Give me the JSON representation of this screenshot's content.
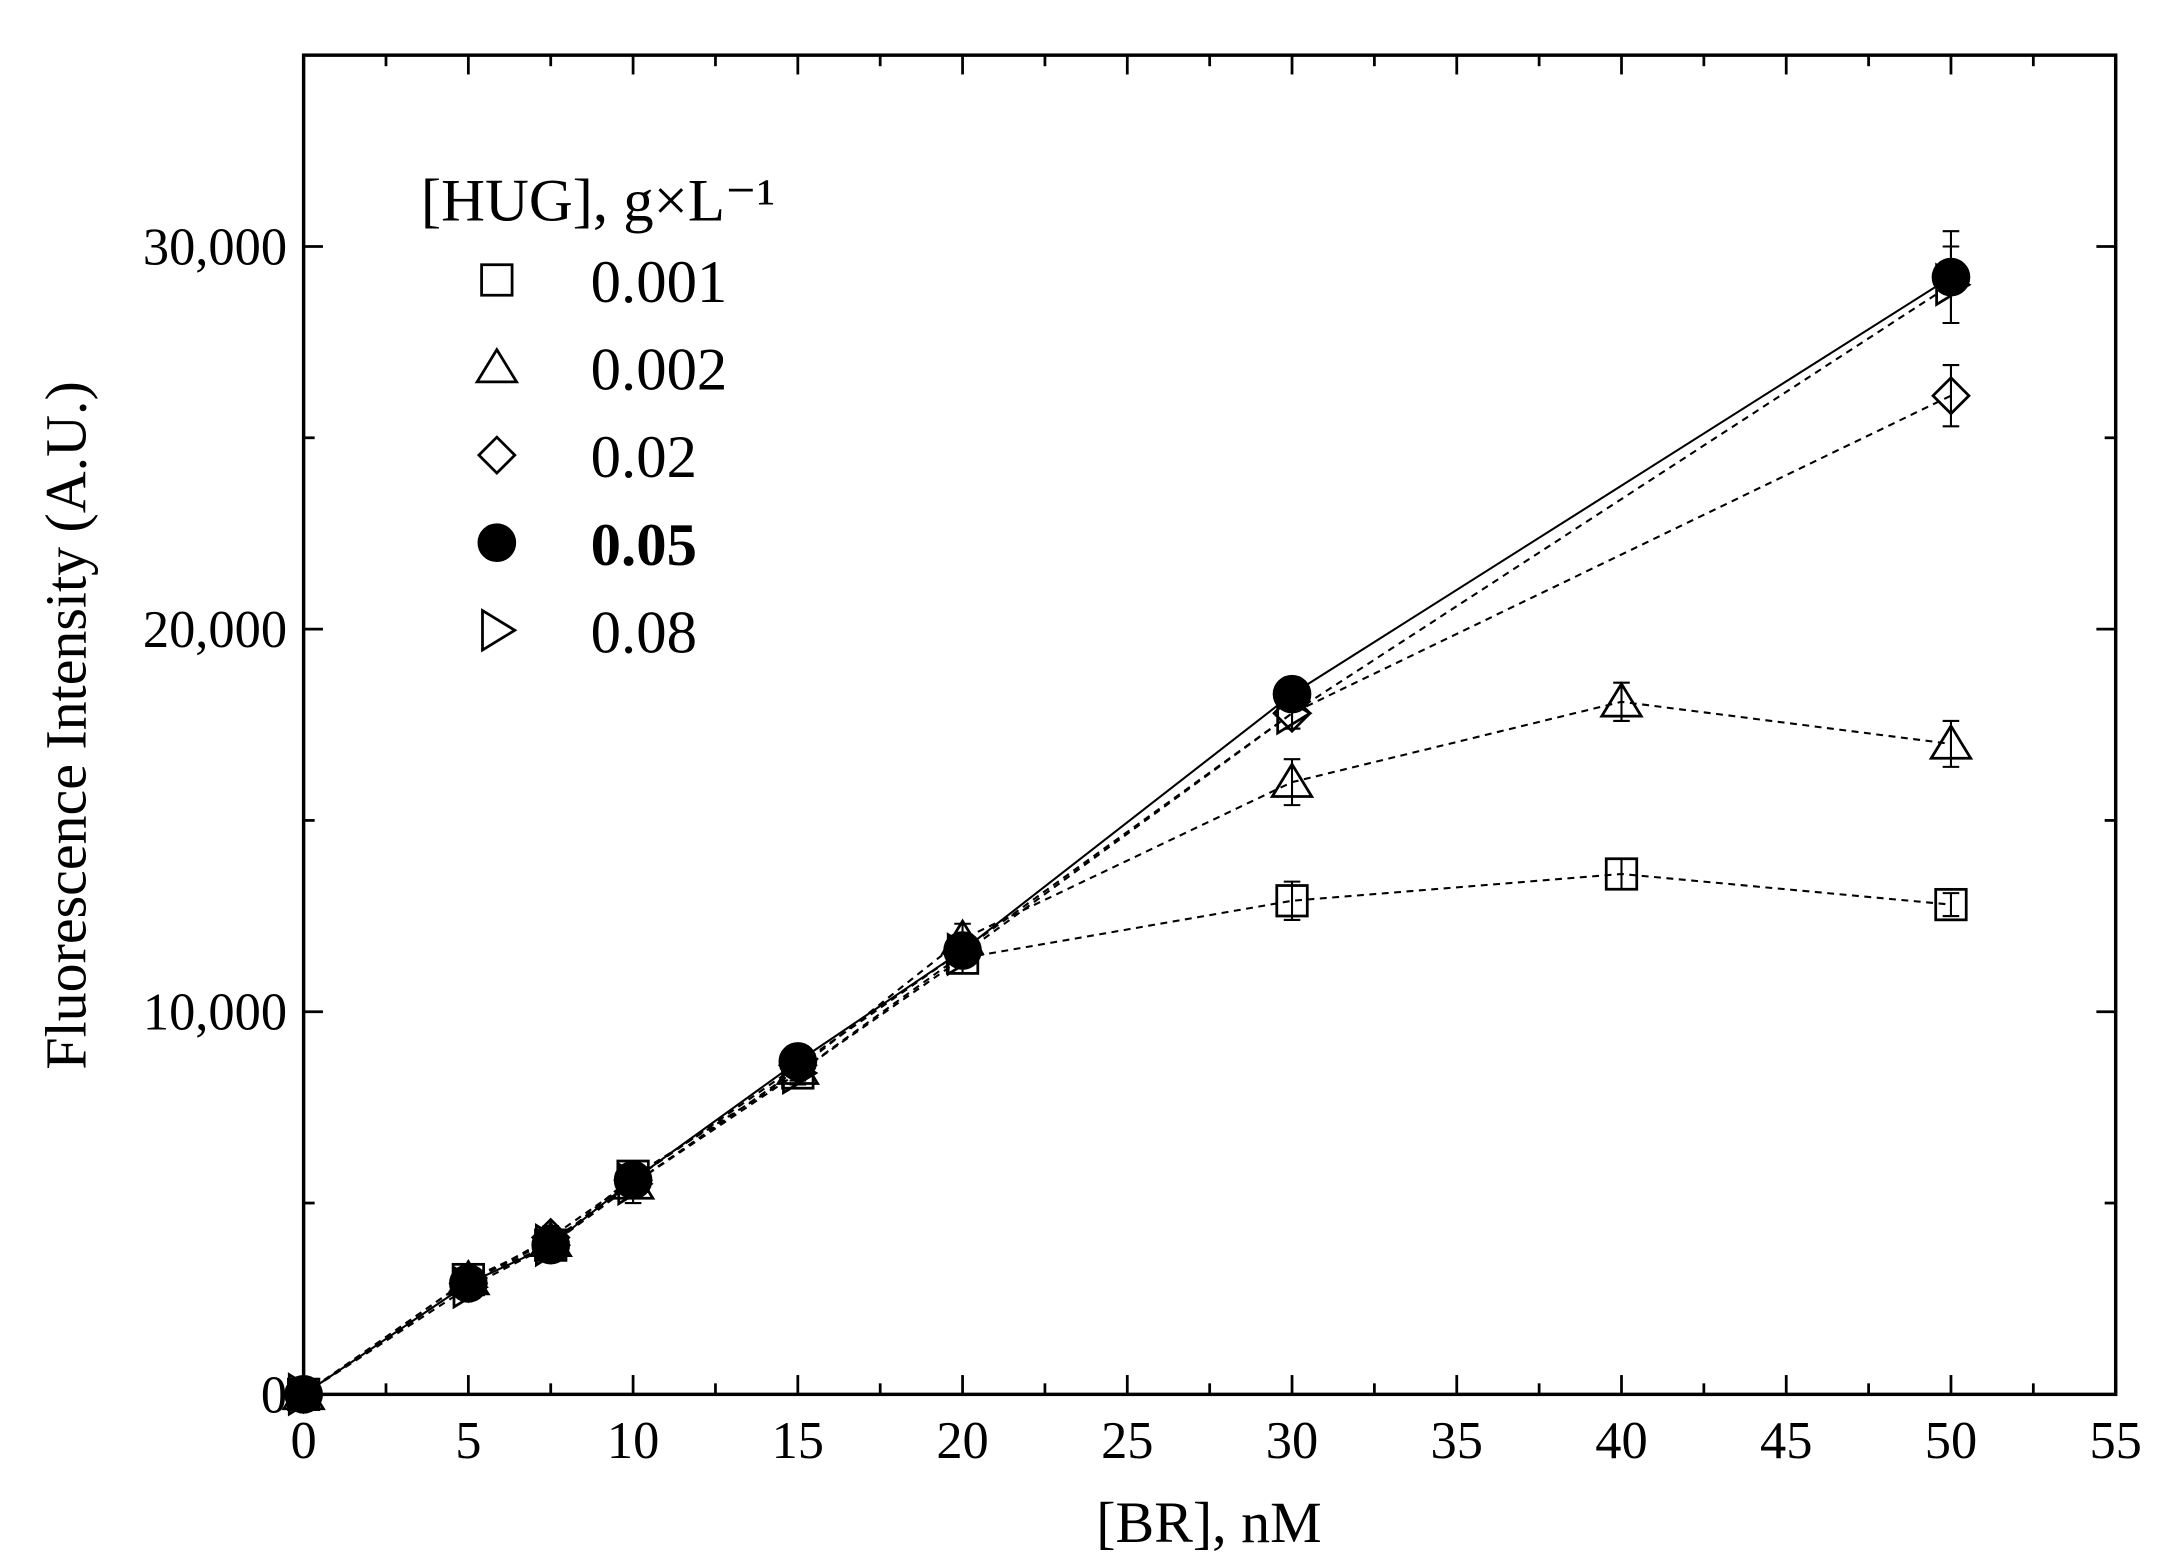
{
  "chart_data": {
    "type": "scatter",
    "x_label": "[BR], nM",
    "y_label": "Fluorescence Intensity (A.U.)",
    "legend_title": "[HUG], g×L⁻¹",
    "legend_position": "upper left",
    "xlim": [
      0,
      55
    ],
    "xticks": [
      0,
      5,
      10,
      15,
      20,
      25,
      30,
      35,
      40,
      45,
      50,
      55
    ],
    "xminorticks": [
      2.5,
      7.5,
      12.5,
      17.5,
      22.5,
      27.5,
      32.5,
      37.5,
      42.5,
      47.5,
      52.5
    ],
    "ylim": [
      0,
      35000
    ],
    "yticks": [
      0,
      {
        "value": 10000,
        "label": "10,000"
      },
      {
        "value": 20000,
        "label": "20,000"
      },
      {
        "value": 30000,
        "label": "30,000"
      }
    ],
    "yminorticks": [
      5000,
      15000,
      25000
    ],
    "series": [
      {
        "name": "0.001",
        "marker": "square",
        "filled": false,
        "line": "dashed",
        "color": "#000000",
        "x": [
          0,
          5,
          7.5,
          10,
          15,
          20,
          30,
          40,
          50
        ],
        "values": [
          0,
          3000,
          3900,
          5700,
          8400,
          11400,
          12900,
          13600,
          12800
        ],
        "errors": [
          100,
          300,
          300,
          300,
          300,
          400,
          500,
          400,
          300
        ]
      },
      {
        "name": "0.002",
        "marker": "triangle",
        "filled": false,
        "line": "dashed",
        "color": "#000000",
        "x": [
          0,
          5,
          7.5,
          10,
          15,
          20,
          30,
          40,
          50
        ],
        "values": [
          0,
          3000,
          4000,
          5500,
          8500,
          11900,
          16000,
          18100,
          17000
        ],
        "errors": [
          100,
          400,
          300,
          500,
          300,
          400,
          600,
          500,
          600
        ]
      },
      {
        "name": "0.02",
        "marker": "diamond",
        "filled": false,
        "line": "dashed",
        "color": "#000000",
        "x": [
          0,
          5,
          7.5,
          10,
          15,
          20,
          30,
          50
        ],
        "values": [
          0,
          2900,
          4100,
          5600,
          8600,
          11600,
          17800,
          26100
        ],
        "errors": [
          100,
          300,
          300,
          300,
          300,
          300,
          400,
          800
        ]
      },
      {
        "name": "0.05",
        "marker": "circle",
        "filled": true,
        "bold": true,
        "line": "solid",
        "color": "#000000",
        "x": [
          0,
          5,
          7.5,
          10,
          15,
          20,
          30,
          50
        ],
        "values": [
          0,
          2900,
          3900,
          5600,
          8700,
          11600,
          18300,
          29200
        ],
        "errors": [
          100,
          300,
          300,
          300,
          300,
          300,
          400,
          1200
        ]
      },
      {
        "name": "0.08",
        "marker": "triangle-right",
        "filled": false,
        "line": "dashed",
        "color": "#000000",
        "x": [
          0,
          5,
          7.5,
          10,
          15,
          20,
          30,
          50
        ],
        "values": [
          0,
          2800,
          3900,
          5500,
          8400,
          11500,
          17800,
          29000
        ],
        "errors": [
          100,
          300,
          300,
          300,
          300,
          300,
          400,
          1000
        ]
      }
    ]
  }
}
